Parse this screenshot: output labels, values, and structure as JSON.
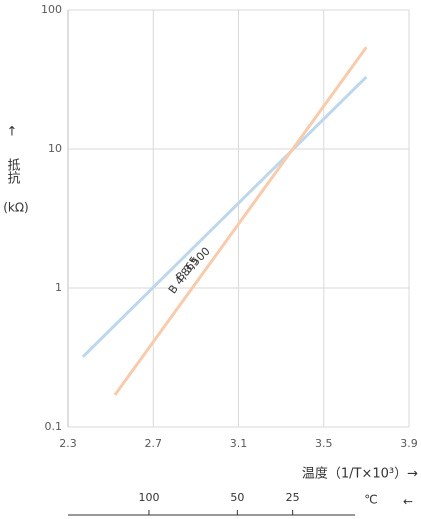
{
  "chart_data": {
    "type": "line",
    "x": [
      2.37,
      3.7
    ],
    "series": [
      {
        "name": "B 3,500",
        "color": "#bdd7ee",
        "x": [
          2.37,
          3.7
        ],
        "values": [
          0.32,
          33
        ]
      },
      {
        "name": "B 4,865",
        "color": "#f8cbad",
        "x": [
          2.52,
          3.7
        ],
        "values": [
          0.17,
          54
        ]
      }
    ],
    "xlim": [
      2.3,
      3.9
    ],
    "xticks": [
      2.3,
      2.7,
      3.1,
      3.5,
      3.9
    ],
    "ylim": [
      0.1,
      100
    ],
    "yticks": [
      0.1,
      1,
      10,
      100
    ],
    "log_y": true,
    "grid": true,
    "xlabel": "温度（1/T×10³）→",
    "ylabel_arrow": "↑",
    "ylabel": "抵抗",
    "ylabel_unit": "(kΩ)",
    "x2ticks": [
      100,
      50,
      25
    ],
    "x2_unit": "℃",
    "x2_arrow": "←"
  }
}
